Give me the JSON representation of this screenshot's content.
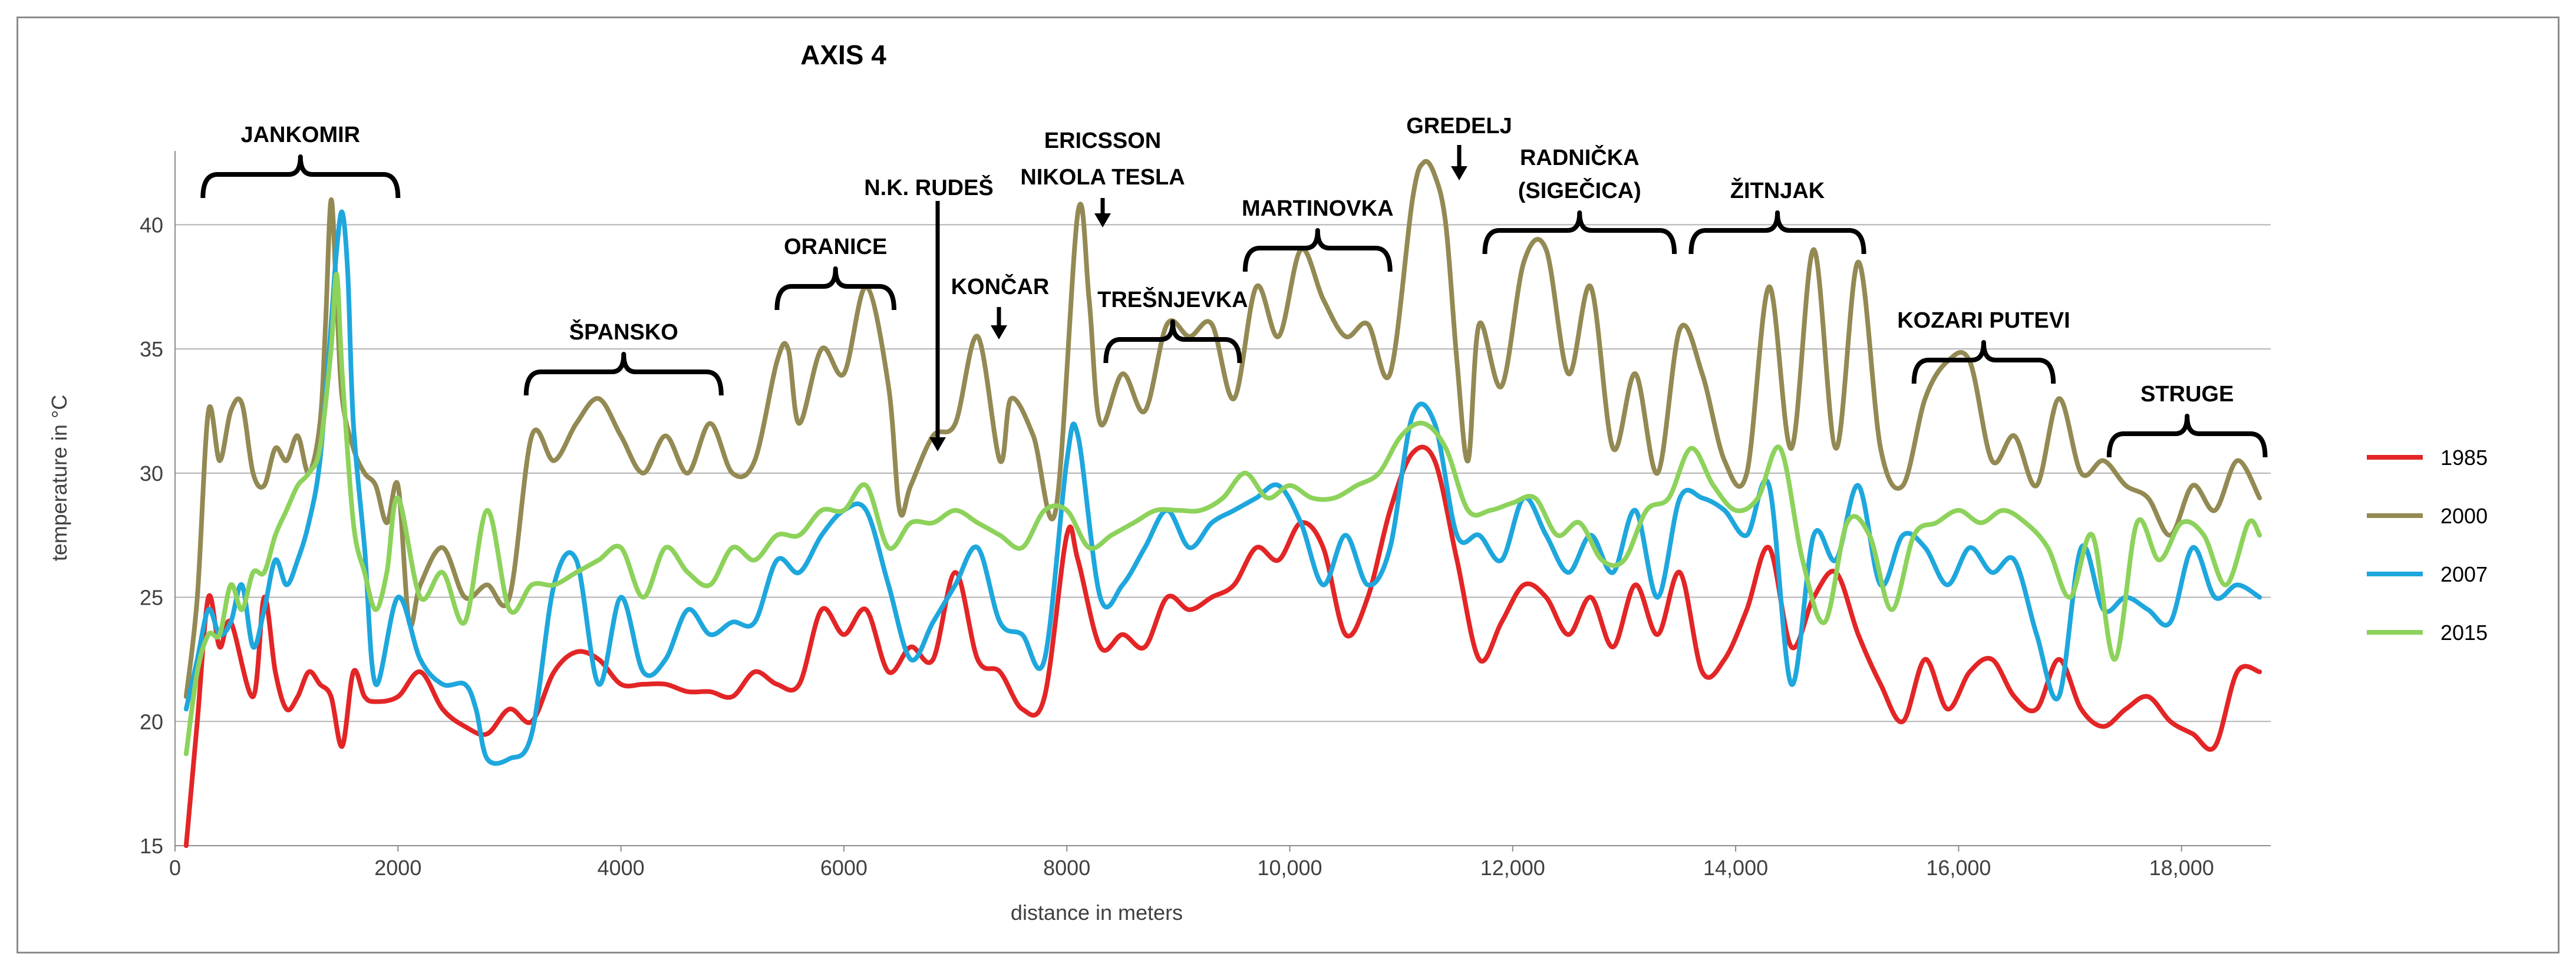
{
  "chart_data": {
    "type": "line",
    "title": "AXIS 4",
    "xlabel": "distance in meters",
    "ylabel": "temperature in °C",
    "xlim": [
      0,
      18800
    ],
    "ylim": [
      15,
      42.5
    ],
    "grid": true,
    "legend_position": "right",
    "x_ticks": [
      0,
      2000,
      4000,
      6000,
      8000,
      10000,
      12000,
      14000,
      16000,
      18000
    ],
    "x_tick_labels": [
      "0",
      "2000",
      "4000",
      "6000",
      "8000",
      "10,000",
      "12,000",
      "14,000",
      "16,000",
      "18,000"
    ],
    "y_ticks": [
      15,
      20,
      25,
      30,
      35,
      40
    ],
    "y_tick_labels": [
      "15",
      "20",
      "25",
      "30",
      "35",
      "40"
    ],
    "series": [
      {
        "name": "1985",
        "color": "#e32526",
        "x": [
          100,
          200,
          300,
          400,
          500,
          700,
          800,
          900,
          1000,
          1100,
          1200,
          1300,
          1400,
          1500,
          1600,
          1700,
          1800,
          2000,
          2200,
          2400,
          2600,
          2800,
          3000,
          3200,
          3400,
          3600,
          3800,
          4000,
          4200,
          4400,
          4600,
          4800,
          5000,
          5200,
          5400,
          5600,
          5800,
          6000,
          6200,
          6400,
          6600,
          6800,
          7000,
          7200,
          7400,
          7600,
          7800,
          8000,
          8100,
          8300,
          8500,
          8700,
          8900,
          9100,
          9300,
          9500,
          9700,
          9900,
          10100,
          10300,
          10500,
          10700,
          10900,
          11100,
          11300,
          11500,
          11700,
          11900,
          12100,
          12300,
          12500,
          12700,
          12900,
          13100,
          13300,
          13500,
          13700,
          13900,
          14100,
          14300,
          14500,
          14700,
          14900,
          15100,
          15300,
          15500,
          15700,
          15900,
          16100,
          16300,
          16500,
          16700,
          16900,
          17100,
          17300,
          17500,
          17700,
          17900,
          18100,
          18300,
          18500,
          18700
        ],
        "values": [
          15,
          20,
          25,
          23,
          24,
          21,
          25,
          22,
          20.5,
          21,
          22,
          21.5,
          21,
          19,
          22,
          21,
          20.8,
          21,
          22,
          20.5,
          19.8,
          19.5,
          20.5,
          20,
          22,
          22.8,
          22.5,
          21.5,
          21.5,
          21.5,
          21.2,
          21.2,
          21,
          22,
          21.5,
          21.5,
          24.5,
          23.5,
          24.5,
          22,
          23,
          22.5,
          26,
          22.5,
          22,
          20.5,
          21,
          27.5,
          26.5,
          23,
          23.5,
          23,
          25,
          24.5,
          25,
          25.5,
          27,
          26.5,
          28,
          27,
          23.5,
          25,
          28.5,
          30.8,
          30.5,
          26.5,
          22.5,
          24,
          25.5,
          25,
          23.5,
          25,
          23,
          25.5,
          23.5,
          26,
          22,
          22.5,
          24.5,
          27,
          23,
          25,
          26,
          23.5,
          21.5,
          20,
          22.5,
          20.5,
          22,
          22.5,
          21,
          20.5,
          22.5,
          20.5,
          19.8,
          20.5,
          21,
          20,
          19.5,
          19,
          22,
          22
        ]
      },
      {
        "name": "2000",
        "color": "#938953",
        "x": [
          100,
          200,
          300,
          400,
          500,
          600,
          700,
          800,
          900,
          1000,
          1100,
          1200,
          1300,
          1350,
          1400,
          1450,
          1500,
          1600,
          1700,
          1800,
          1900,
          2000,
          2100,
          2200,
          2400,
          2600,
          2800,
          3000,
          3200,
          3400,
          3600,
          3800,
          4000,
          4200,
          4400,
          4600,
          4800,
          5000,
          5200,
          5400,
          5500,
          5600,
          5800,
          6000,
          6200,
          6400,
          6500,
          6600,
          6800,
          7000,
          7200,
          7400,
          7500,
          7700,
          7900,
          8100,
          8200,
          8300,
          8500,
          8700,
          8900,
          9100,
          9300,
          9500,
          9700,
          9900,
          10100,
          10300,
          10500,
          10700,
          10900,
          11100,
          11200,
          11300,
          11400,
          11500,
          11600,
          11700,
          11900,
          12100,
          12300,
          12500,
          12700,
          12900,
          13100,
          13300,
          13500,
          13700,
          13900,
          14100,
          14300,
          14500,
          14700,
          14900,
          15100,
          15300,
          15500,
          15700,
          15900,
          16100,
          16300,
          16500,
          16700,
          16900,
          17100,
          17300,
          17500,
          17700,
          17900,
          18100,
          18300,
          18500,
          18700
        ],
        "values": [
          21,
          25,
          32.5,
          30.5,
          32.5,
          32.8,
          30,
          29.5,
          31,
          30.5,
          31.5,
          30,
          32,
          36,
          41,
          37,
          33,
          31,
          30,
          29.5,
          28,
          29.5,
          24,
          25.5,
          27,
          25,
          25.5,
          25,
          31.5,
          30.5,
          32,
          33,
          31.5,
          30,
          31.5,
          30,
          32,
          30,
          30.5,
          34.5,
          35,
          32,
          35,
          34,
          37.5,
          33.5,
          28.5,
          29.5,
          31.5,
          32,
          35.5,
          30.5,
          33,
          31.5,
          28.5,
          40.5,
          37,
          32,
          34,
          32.5,
          36,
          35.5,
          36,
          33,
          37.5,
          35.5,
          39,
          37,
          35.5,
          36,
          34,
          41,
          42.5,
          42,
          40,
          34.5,
          30.5,
          36,
          33.5,
          38.5,
          39,
          34,
          37.5,
          31,
          34,
          30,
          35.8,
          34,
          30.5,
          30,
          37.5,
          31,
          39,
          31,
          38.5,
          31,
          29.5,
          33,
          34.5,
          34.5,
          30.5,
          31.5,
          29.5,
          33,
          30,
          30.5,
          29.5,
          29,
          27.5,
          29.5,
          28.5,
          30.5,
          29
        ]
      },
      {
        "name": "2007",
        "color": "#1ea7dd",
        "x": [
          100,
          200,
          300,
          400,
          500,
          600,
          700,
          800,
          900,
          1000,
          1100,
          1200,
          1300,
          1400,
          1450,
          1500,
          1550,
          1600,
          1700,
          1800,
          2000,
          2200,
          2400,
          2600,
          2700,
          2800,
          3000,
          3200,
          3400,
          3600,
          3800,
          4000,
          4200,
          4400,
          4600,
          4800,
          5000,
          5200,
          5400,
          5600,
          5800,
          6000,
          6200,
          6400,
          6600,
          6800,
          7000,
          7200,
          7400,
          7600,
          7800,
          8000,
          8100,
          8300,
          8500,
          8700,
          8900,
          9100,
          9300,
          9500,
          9700,
          9900,
          10100,
          10300,
          10500,
          10700,
          10900,
          11100,
          11300,
          11500,
          11700,
          11900,
          12100,
          12300,
          12500,
          12700,
          12900,
          13100,
          13300,
          13500,
          13700,
          13900,
          14100,
          14300,
          14500,
          14700,
          14900,
          15100,
          15300,
          15500,
          15700,
          15900,
          16100,
          16300,
          16500,
          16700,
          16900,
          17100,
          17300,
          17500,
          17700,
          17900,
          18100,
          18300,
          18500,
          18700
        ],
        "values": [
          20.5,
          22.5,
          24.5,
          23.5,
          24,
          25.5,
          23,
          24.5,
          26.5,
          25.5,
          26.5,
          28,
          30.5,
          36,
          39,
          40.5,
          38,
          32,
          27,
          21.5,
          25,
          22.5,
          21.5,
          21.5,
          20.5,
          18.5,
          18.5,
          19.5,
          25.5,
          26.5,
          21.5,
          25,
          22,
          22.5,
          24.5,
          23.5,
          24,
          24,
          26.5,
          26,
          27.5,
          28.5,
          28.5,
          25.5,
          22.5,
          24,
          25.5,
          27,
          24,
          23.5,
          22.5,
          30.5,
          31.5,
          25,
          25.5,
          27,
          28.5,
          27,
          28,
          28.5,
          29,
          29.5,
          28,
          25.5,
          27.5,
          25.5,
          27,
          32.3,
          32,
          27.5,
          27.5,
          26.5,
          29,
          27.5,
          26,
          27.5,
          26,
          28.5,
          25,
          29,
          29,
          28.5,
          27.5,
          29.5,
          21.5,
          27.5,
          26.5,
          29.5,
          25.5,
          27.5,
          27,
          25.5,
          27,
          26,
          26.5,
          23.5,
          21,
          27,
          24.5,
          25,
          24.5,
          24,
          27,
          25,
          25.5,
          25
        ]
      },
      {
        "name": "2015",
        "color": "#8dd25b",
        "x": [
          100,
          200,
          300,
          400,
          500,
          600,
          700,
          800,
          900,
          1000,
          1100,
          1200,
          1300,
          1400,
          1450,
          1500,
          1600,
          1700,
          1800,
          1900,
          2000,
          2200,
          2400,
          2600,
          2800,
          3000,
          3200,
          3400,
          3600,
          3800,
          4000,
          4200,
          4400,
          4600,
          4800,
          5000,
          5200,
          5400,
          5600,
          5800,
          6000,
          6200,
          6400,
          6600,
          6800,
          7000,
          7200,
          7400,
          7600,
          7800,
          8000,
          8200,
          8400,
          8600,
          8800,
          9000,
          9200,
          9400,
          9600,
          9800,
          10000,
          10200,
          10400,
          10600,
          10800,
          11000,
          11200,
          11400,
          11600,
          11800,
          12000,
          12200,
          12400,
          12600,
          12800,
          13000,
          13200,
          13400,
          13600,
          13800,
          14000,
          14200,
          14400,
          14600,
          14800,
          15000,
          15200,
          15400,
          15600,
          15800,
          16000,
          16200,
          16400,
          16600,
          16800,
          17000,
          17200,
          17400,
          17600,
          17800,
          18000,
          18200,
          18400,
          18600,
          18700
        ],
        "values": [
          18.7,
          22,
          23.5,
          23.5,
          25.5,
          24.5,
          26,
          26,
          27.5,
          28.5,
          29.5,
          30,
          31,
          35,
          38,
          34,
          28,
          26,
          24.5,
          26,
          29,
          25,
          26,
          24,
          28.5,
          24.5,
          25.5,
          25.5,
          26,
          26.5,
          27,
          25,
          27,
          26,
          25.5,
          27,
          26.5,
          27.5,
          27.5,
          28.5,
          28.5,
          29.5,
          27,
          28,
          28,
          28.5,
          28,
          27.5,
          27,
          28.5,
          28.5,
          27,
          27.5,
          28,
          28.5,
          28.5,
          28.5,
          29,
          30,
          29,
          29.5,
          29,
          29,
          29.5,
          30,
          31.5,
          32,
          31,
          28.5,
          28.5,
          28.8,
          29,
          27.5,
          28,
          26.5,
          26.5,
          28.5,
          29,
          31,
          29.5,
          28.5,
          29,
          31,
          26.5,
          24,
          28,
          27.5,
          24.5,
          27.5,
          28,
          28.5,
          28,
          28.5,
          28,
          27,
          25,
          27.5,
          22.5,
          28,
          26.5,
          28,
          27.5,
          25.5,
          28,
          27.5
        ]
      }
    ],
    "annotations": {
      "brackets": [
        {
          "label": "JANKOMIR",
          "x_start": 250,
          "x_end": 2000
        },
        {
          "label": "ŠPANSKO",
          "x_start": 3150,
          "x_end": 4900
        },
        {
          "label": "ORANICE",
          "x_start": 5400,
          "x_end": 6450
        },
        {
          "label": "TREŠNJEVKA",
          "x_start": 8350,
          "x_end": 9550
        },
        {
          "label": "MARTINOVKA",
          "x_start": 9600,
          "x_end": 10900
        },
        {
          "label_lines": [
            "RADNIČKA",
            "(SIGEČICA)"
          ],
          "x_start": 11750,
          "x_end": 13450
        },
        {
          "label": "ŽITNJAK",
          "x_start": 13600,
          "x_end": 15150
        },
        {
          "label": "KOZARI PUTEVI",
          "x_start": 15600,
          "x_end": 16850
        },
        {
          "label": "STRUGE",
          "x_start": 17350,
          "x_end": 18750
        }
      ],
      "arrows": [
        {
          "label": "N.K. RUDEŠ",
          "x": 6650
        },
        {
          "label": "KONČAR",
          "x": 7200
        },
        {
          "label_lines": [
            "ERICSSON",
            "NIKOLA TESLA"
          ],
          "x": 8050
        },
        {
          "label": "GREDELJ",
          "x": 11100
        }
      ]
    }
  }
}
